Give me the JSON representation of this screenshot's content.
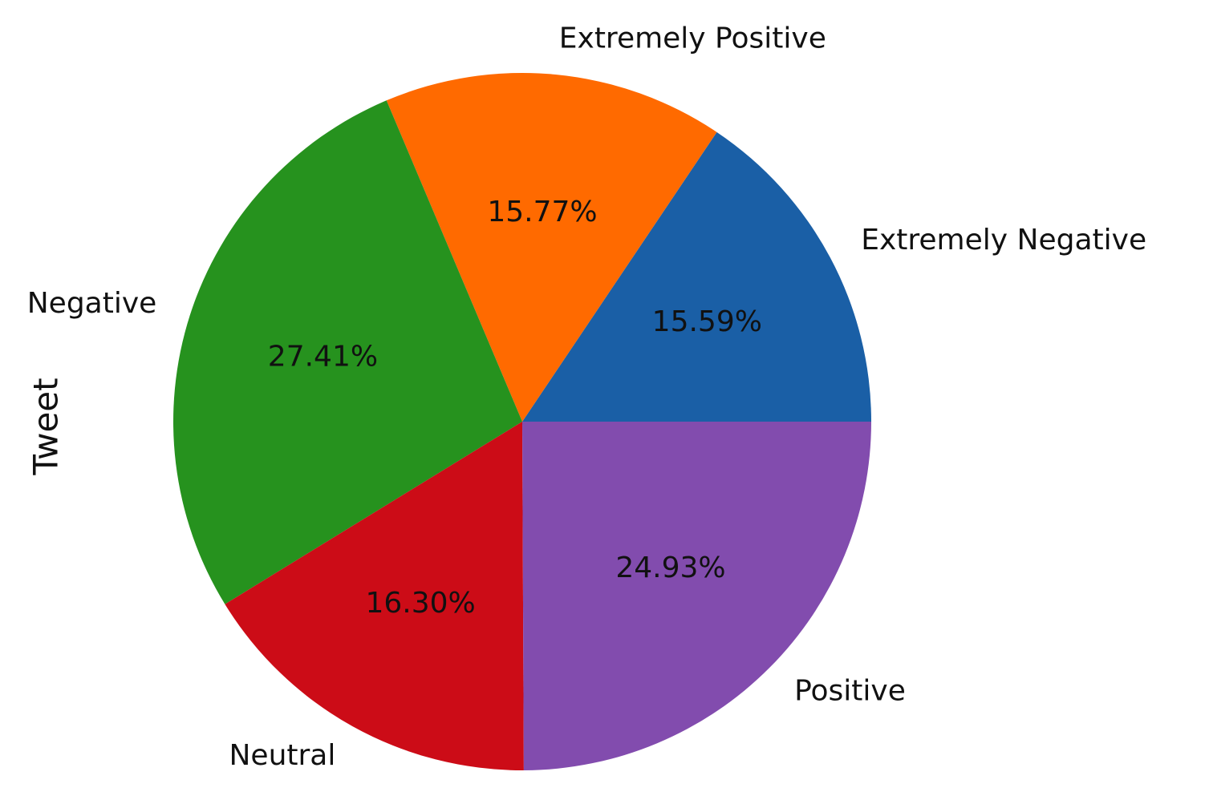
{
  "chart_data": {
    "type": "pie",
    "ylabel": "Tweet",
    "categories": [
      "Extremely Negative",
      "Extremely Positive",
      "Negative",
      "Neutral",
      "Positive"
    ],
    "values": [
      15.59,
      15.77,
      27.41,
      16.3,
      24.93
    ],
    "value_labels": [
      "15.59%",
      "15.77%",
      "27.41%",
      "16.30%",
      "24.93%"
    ],
    "colors": [
      "#1a5fa6",
      "#ff6a00",
      "#26921e",
      "#cc0c17",
      "#824cae"
    ]
  }
}
